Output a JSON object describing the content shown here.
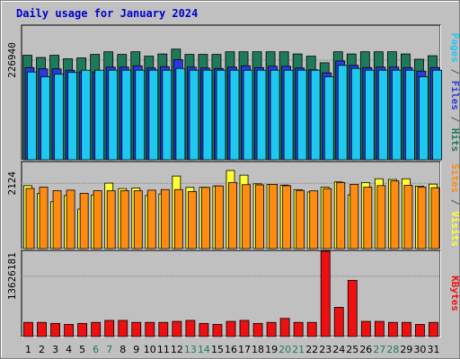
{
  "chart_data": {
    "title": "Daily usage for January 2024",
    "type": "bar",
    "days": [
      "1",
      "2",
      "3",
      "4",
      "5",
      "6",
      "7",
      "8",
      "9",
      "10",
      "11",
      "12",
      "13",
      "14",
      "15",
      "16",
      "17",
      "18",
      "19",
      "20",
      "21",
      "22",
      "23",
      "24",
      "25",
      "26",
      "27",
      "28",
      "29",
      "30",
      "31"
    ],
    "weekend_days": [
      "6",
      "7",
      "13",
      "14",
      "20",
      "21",
      "27",
      "28"
    ],
    "colors": {
      "hits": "#1f7a5a",
      "files": "#2a3ae0",
      "pages": "#1fc8f0",
      "visits": "#ffff33",
      "sites": "#ff8c10",
      "kbytes": "#ee1010",
      "panel_bg": "#c0c0c0",
      "title": "#0000cc",
      "day_normal": "#000000",
      "day_weekend": "#1f7a5a"
    },
    "panels": [
      {
        "id": "hits-files-pages",
        "ymax_label": "226940",
        "ymax": 226940,
        "legend": [
          {
            "text": "Pages",
            "color": "#1fc8f0"
          },
          {
            "text": " / ",
            "color": "#555555"
          },
          {
            "text": "Files",
            "color": "#2a3ae0"
          },
          {
            "text": " / ",
            "color": "#555555"
          },
          {
            "text": "Hits",
            "color": "#1f7a5a"
          }
        ],
        "series": [
          {
            "name": "Hits",
            "values": [
              238000,
              233000,
              238000,
              230000,
              232000,
              240000,
              246000,
              240000,
              246000,
              236000,
              241000,
              252000,
              240000,
              240000,
              240000,
              246000,
              246000,
              246000,
              246000,
              246000,
              241000,
              236000,
              221000,
              246000,
              241000,
              246000,
              246000,
              246000,
              241000,
              229000,
              237000
            ]
          },
          {
            "name": "Files",
            "values": [
              210000,
              207000,
              207000,
              204000,
              200000,
              200000,
              211000,
              211000,
              214000,
              209000,
              212000,
              228000,
              211000,
              209000,
              208000,
              211000,
              214000,
              210000,
              213000,
              213000,
              209000,
              205000,
              198000,
              225000,
              215000,
              210000,
              211000,
              211000,
              210000,
              202000,
              210000
            ]
          },
          {
            "name": "Pages",
            "values": [
              200000,
              189000,
              195000,
              199000,
              204000,
              204000,
              204000,
              204000,
              204000,
              204000,
              204000,
              208000,
              204000,
              204000,
              204000,
              204000,
              204000,
              204000,
              204000,
              204000,
              204000,
              204000,
              189000,
              215000,
              208000,
              204000,
              204000,
              204000,
              204000,
              189000,
              204000
            ]
          }
        ]
      },
      {
        "id": "visits-sites",
        "ymax_label": "2124",
        "ymax": 2124,
        "legend": [
          {
            "text": "Sites",
            "color": "#ff8c10"
          },
          {
            "text": " / ",
            "color": "#555555"
          },
          {
            "text": "Visits",
            "color": "#ffff33"
          }
        ],
        "series": [
          {
            "name": "Visits",
            "values": [
              2048,
              1793,
              1526,
              1727,
              1286,
              1743,
              2129,
              1952,
              1971,
              1726,
              1779,
              2361,
              1992,
              1994,
              2039,
              2541,
              2390,
              2107,
              2090,
              2067,
              1917,
              1841,
              1998,
              2169,
              1750,
              2149,
              2271,
              2249,
              2271,
              2033,
              2098
            ]
          },
          {
            "name": "Sites",
            "values": [
              1958,
              2000,
              1884,
              1900,
              1800,
              1884,
              1884,
              1884,
              1884,
              1900,
              1920,
              1920,
              1858,
              1990,
              2039,
              2150,
              2080,
              2073,
              2090,
              2046,
              1892,
              1878,
              1950,
              2150,
              2090,
              2000,
              2049,
              2200,
              2060,
              2000,
              1980
            ]
          }
        ]
      },
      {
        "id": "kbytes",
        "ymax_label": "13626181",
        "ymax": 13626181,
        "legend": [
          {
            "text": "KBytes",
            "color": "#ee1010"
          }
        ],
        "series": [
          {
            "name": "KBytes",
            "values": [
              3200000,
              3200000,
              2970000,
              2740000,
              2970000,
              3200000,
              3650000,
              3650000,
              3200000,
              3200000,
              3200000,
              3430000,
              3650000,
              2970000,
              2740000,
              3430000,
              3650000,
              2970000,
              3200000,
              4100000,
              3200000,
              3200000,
              20560000,
              6600000,
              12700000,
              3430000,
              3430000,
              3200000,
              3200000,
              2740000,
              3200000
            ]
          }
        ]
      }
    ]
  }
}
